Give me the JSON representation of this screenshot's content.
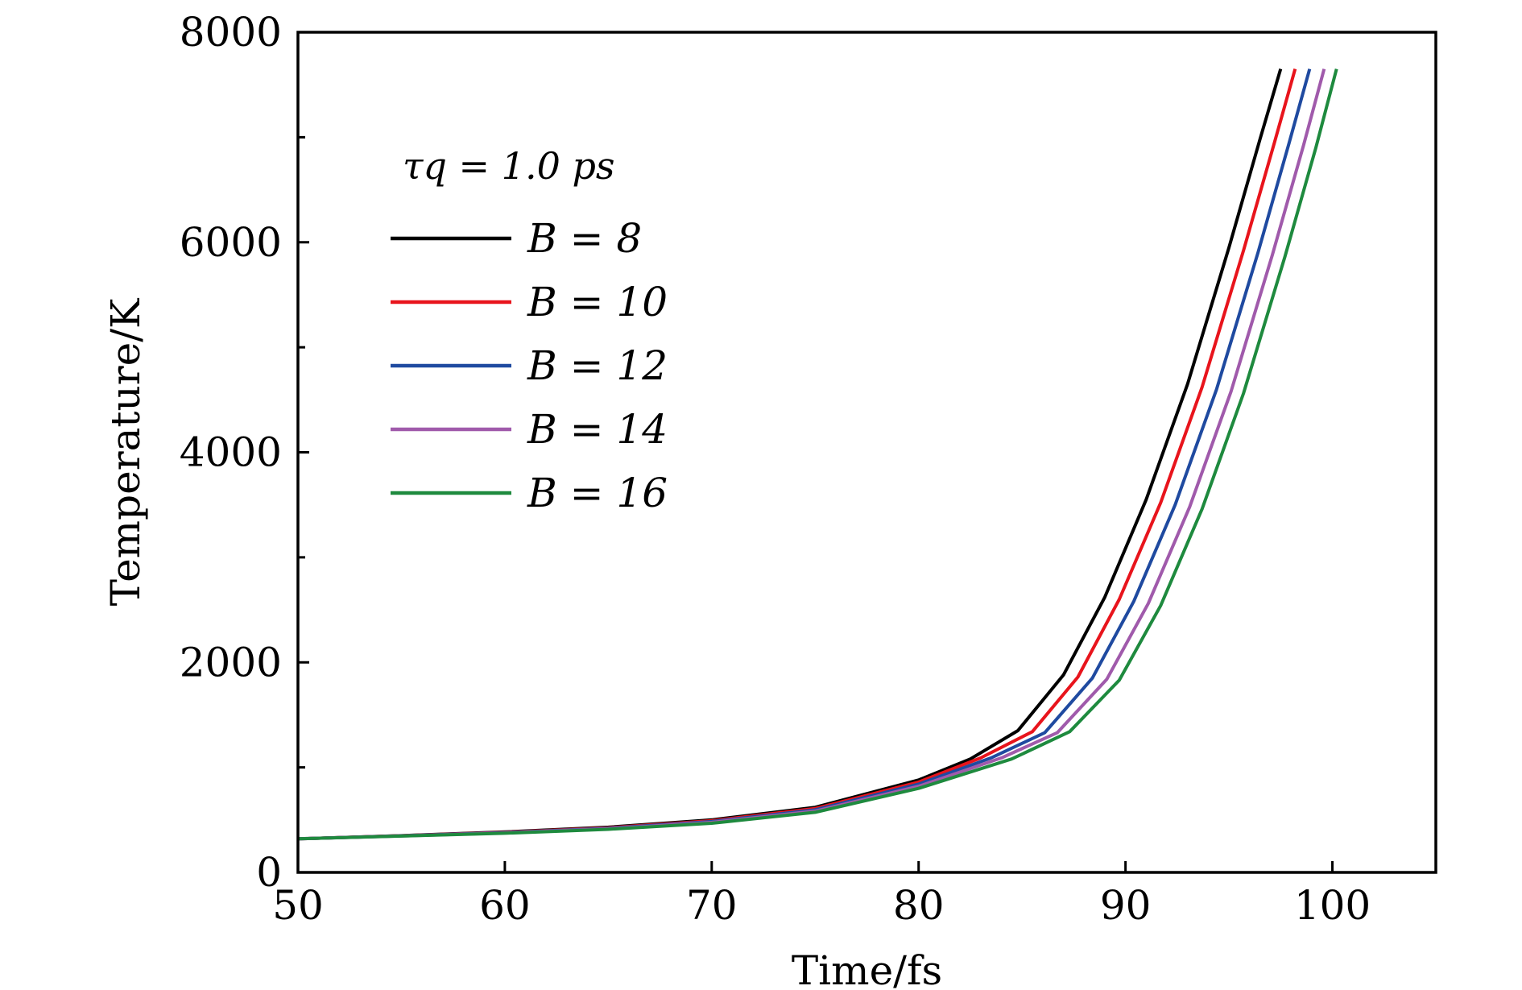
{
  "chart_data": {
    "type": "line",
    "xlabel": "Time/fs",
    "ylabel": "Temperature/K",
    "xlim": [
      50,
      105
    ],
    "ylim": [
      0,
      8000
    ],
    "xticks": [
      50,
      60,
      70,
      80,
      90,
      100
    ],
    "yticks": [
      0,
      2000,
      4000,
      6000,
      8000
    ],
    "yminor_ticks": [
      1000,
      3000,
      5000,
      7000
    ],
    "xtick_labels": [
      "50",
      "60",
      "70",
      "80",
      "90",
      "100"
    ],
    "ytick_labels": [
      "0",
      "2000",
      "4000",
      "6000",
      "8000"
    ],
    "grid": false,
    "legend_position": "upper-left",
    "legend_title": "τq = 1.0 ps",
    "series": [
      {
        "name": "B = 8",
        "color": "#000000",
        "x": [
          50,
          55,
          60,
          65,
          70,
          75,
          80,
          82.5,
          84.8,
          87,
          89,
          91,
          93,
          95,
          96.5,
          97.5
        ],
        "y": [
          320,
          350,
          385,
          430,
          500,
          620,
          880,
          1080,
          1350,
          1880,
          2620,
          3550,
          4650,
          5950,
          6980,
          7650
        ]
      },
      {
        "name": "B = 10",
        "color": "#e8141c",
        "x": [
          50,
          55,
          60,
          65,
          70,
          75,
          80,
          83,
          85.5,
          87.7,
          89.7,
          91.7,
          93.7,
          95.7,
          97.2,
          98.2
        ],
        "y": [
          320,
          349,
          382,
          425,
          492,
          608,
          860,
          1090,
          1340,
          1860,
          2600,
          3520,
          4620,
          5920,
          6950,
          7650
        ]
      },
      {
        "name": "B = 12",
        "color": "#1f4aa0",
        "x": [
          50,
          55,
          60,
          65,
          70,
          75,
          80,
          83.5,
          86.1,
          88.4,
          90.4,
          92.4,
          94.4,
          96.4,
          97.9,
          98.9
        ],
        "y": [
          320,
          348,
          379,
          420,
          484,
          596,
          840,
          1090,
          1330,
          1850,
          2580,
          3500,
          4600,
          5900,
          6940,
          7650
        ]
      },
      {
        "name": "B = 14",
        "color": "#a05aab",
        "x": [
          50,
          55,
          60,
          65,
          70,
          75,
          80,
          84,
          86.7,
          89.1,
          91.1,
          93.1,
          95.1,
          97.1,
          98.6,
          99.6
        ],
        "y": [
          320,
          347,
          376,
          415,
          476,
          584,
          820,
          1090,
          1330,
          1840,
          2560,
          3480,
          4580,
          5880,
          6920,
          7650
        ]
      },
      {
        "name": "B = 16",
        "color": "#1e8a3e",
        "x": [
          50,
          55,
          60,
          65,
          70,
          75,
          80,
          84.5,
          87.3,
          89.7,
          91.7,
          93.7,
          95.7,
          97.7,
          99.2,
          100.2
        ],
        "y": [
          320,
          346,
          373,
          410,
          468,
          572,
          800,
          1080,
          1340,
          1830,
          2540,
          3460,
          4560,
          5860,
          6900,
          7650
        ]
      }
    ]
  }
}
